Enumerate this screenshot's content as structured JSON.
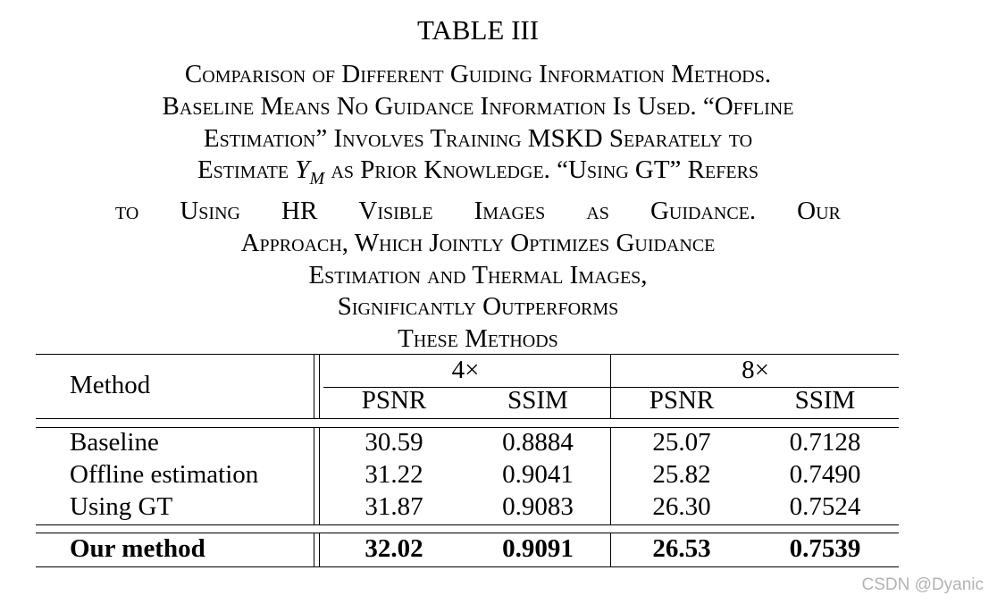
{
  "table_label": "TABLE III",
  "caption": {
    "line1": "Comparison of Different Guiding Information Methods.",
    "line2": "Baseline Means No Guidance Information Is Used. “Offline",
    "line3": "Estimation” Involves Training MSKD Separately to",
    "line4_pre": "Estimate ",
    "line4_sym": "Y",
    "line4_sub": "M",
    "line4_post": " as Prior Knowledge. “Using GT” Refers",
    "line5_words": [
      "to",
      "Using",
      "HR",
      "Visible",
      "Images",
      "as",
      "Guidance.",
      "Our"
    ],
    "line6": "Approach, Which Jointly Optimizes Guidance",
    "line7": "Estimation and Thermal Images,",
    "line8": "Significantly Outperforms",
    "line9": "These Methods"
  },
  "table": {
    "method_header": "Method",
    "scale_headers": [
      "4×",
      "8×"
    ],
    "metric_headers": [
      "PSNR",
      "SSIM",
      "PSNR",
      "SSIM"
    ],
    "rows": [
      {
        "method": "Baseline",
        "values": [
          "30.59",
          "0.8884",
          "25.07",
          "0.7128"
        ]
      },
      {
        "method": "Offline estimation",
        "values": [
          "31.22",
          "0.9041",
          "25.82",
          "0.7490"
        ]
      },
      {
        "method": "Using GT",
        "values": [
          "31.87",
          "0.9083",
          "26.30",
          "0.7524"
        ]
      }
    ],
    "ours": {
      "method": "Our method",
      "values": [
        "32.02",
        "0.9091",
        "26.53",
        "0.7539"
      ]
    }
  },
  "watermark": "CSDN @Dyanic"
}
